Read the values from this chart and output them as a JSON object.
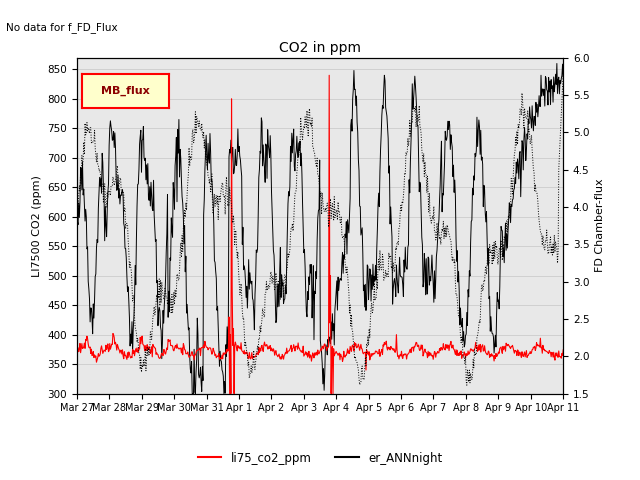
{
  "title": "CO2 in ppm",
  "subtitle": "No data for f_FD_Flux",
  "ylabel_left": "LI7500 CO2 (ppm)",
  "ylabel_right": "FD Chamber-flux",
  "ylim_left": [
    300,
    870
  ],
  "ylim_right": [
    1.5,
    6.0
  ],
  "yticks_left": [
    300,
    350,
    400,
    450,
    500,
    550,
    600,
    650,
    700,
    750,
    800,
    850
  ],
  "yticks_right": [
    1.5,
    2.0,
    2.5,
    3.0,
    3.5,
    4.0,
    4.5,
    5.0,
    5.5,
    6.0
  ],
  "xtick_labels": [
    "Mar 27",
    "Mar 28",
    "Mar 29",
    "Mar 30",
    "Mar 31",
    "Apr 1",
    "Apr 2",
    "Apr 3",
    "Apr 4",
    "Apr 5",
    "Apr 6",
    "Apr 7",
    "Apr 8",
    "Apr 9",
    "Apr 10",
    "Apr 11"
  ],
  "legend_label1": "li75_co2_ppm",
  "legend_label2": "er_ANNnight",
  "legend_label3": "MB_flux",
  "line1_color": "#ff0000",
  "line2_color": "#000000",
  "grid_color": "#d0d0d0",
  "background_color": "#e8e8e8"
}
